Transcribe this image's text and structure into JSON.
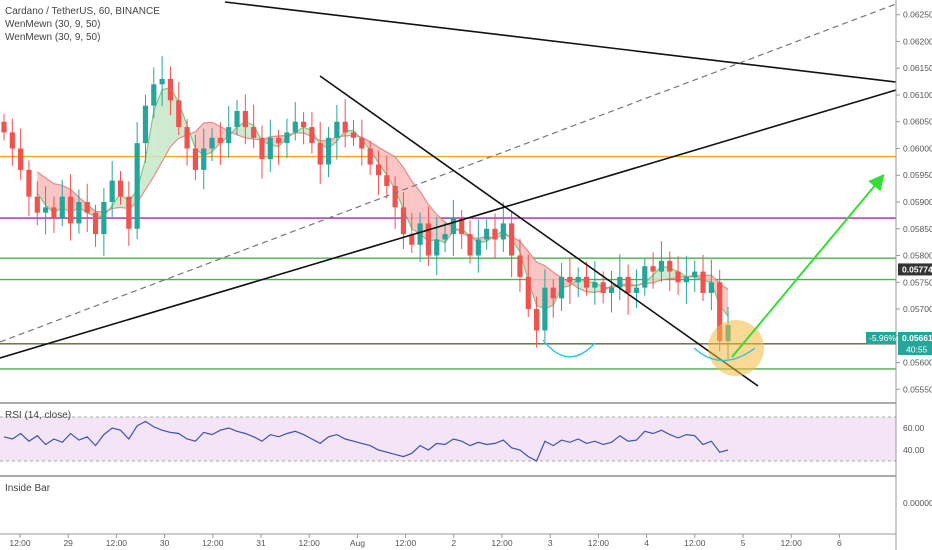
{
  "header": {
    "symbol_line": "Cardano / TetherUS, 60, BINANCE",
    "indicator_1": "WenMewn (30, 9, 50)",
    "indicator_2": "WenMewn (30, 9, 50)"
  },
  "rsi_pane": {
    "label": "RSI (14, close)",
    "ticks": [
      "60.00",
      "40.00"
    ]
  },
  "inside_bar_pane": {
    "label": "Inside Bar",
    "ticks": [
      "0.00000"
    ]
  },
  "price_axis": {
    "ticks": [
      "0.06250",
      "0.06200",
      "0.06150",
      "0.06100",
      "0.06050",
      "0.06000",
      "0.05950",
      "0.05900",
      "0.05850",
      "0.05800",
      "0.05750",
      "0.05700",
      "0.05650",
      "0.05600",
      "0.05550"
    ],
    "last_price_label": "0.05774",
    "current_price_label": "0.05661",
    "change_label": "-5.96%",
    "countdown_label": "40:55"
  },
  "time_axis": {
    "ticks": [
      "12:00",
      "29",
      "12:00",
      "30",
      "12:00",
      "31",
      "12:00",
      "Aug",
      "12:00",
      "2",
      "12:00",
      "3",
      "12:00",
      "4",
      "12:00",
      "5",
      "12:00",
      "6"
    ]
  },
  "colors": {
    "up": "#26a69a",
    "down": "#ef5350",
    "cloud_up": "#c8e6c9",
    "cloud_down": "#f8bbbb",
    "orange_level": "#f5a623",
    "purple_level": "#9c27b0",
    "green_level": "#4caf50",
    "olive_level": "#556b2f",
    "rsi_line": "#3f51b5",
    "rsi_fill": "#f3e5f5",
    "target_arrow": "#33dd33",
    "circle": "#f5b942"
  },
  "chart_data": {
    "type": "candlestick",
    "pair": "Cardano / TetherUS",
    "interval": "60",
    "exchange": "BINANCE",
    "y_range": [
      0.0553,
      0.0627
    ],
    "horizontal_levels": [
      {
        "price": 0.05985,
        "color": "orange"
      },
      {
        "price": 0.0587,
        "color": "purple"
      },
      {
        "price": 0.05795,
        "color": "green"
      },
      {
        "price": 0.05755,
        "color": "green"
      },
      {
        "price": 0.05635,
        "color": "olive"
      },
      {
        "price": 0.05588,
        "color": "green"
      }
    ],
    "price_path": [
      0.0603,
      0.06,
      0.0596,
      0.0591,
      0.0588,
      0.0589,
      0.0587,
      0.0591,
      0.0586,
      0.059,
      0.0588,
      0.0584,
      0.059,
      0.0594,
      0.0591,
      0.0585,
      0.0601,
      0.0608,
      0.0612,
      0.0613,
      0.0609,
      0.0604,
      0.06,
      0.0596,
      0.06,
      0.0602,
      0.0601,
      0.0604,
      0.0607,
      0.0604,
      0.0602,
      0.0598,
      0.0602,
      0.0601,
      0.0603,
      0.0605,
      0.0604,
      0.0601,
      0.0597,
      0.0602,
      0.0605,
      0.0603,
      0.0602,
      0.06,
      0.0597,
      0.0595,
      0.0593,
      0.0589,
      0.0584,
      0.0582,
      0.0586,
      0.058,
      0.0583,
      0.0584,
      0.0587,
      0.0584,
      0.058,
      0.0583,
      0.0585,
      0.0583,
      0.0586,
      0.058,
      0.0576,
      0.057,
      0.0566,
      0.0574,
      0.0572,
      0.0576,
      0.0575,
      0.0576,
      0.0574,
      0.0575,
      0.0573,
      0.0574,
      0.0576,
      0.0573,
      0.0574,
      0.0578,
      0.0577,
      0.0579,
      0.0577,
      0.0575,
      0.0576,
      0.0577,
      0.0573,
      0.0575,
      0.0564,
      0.0567
    ],
    "rsi_path": [
      52,
      50,
      55,
      48,
      53,
      45,
      50,
      47,
      55,
      49,
      52,
      44,
      54,
      60,
      58,
      50,
      62,
      66,
      61,
      58,
      56,
      55,
      50,
      48,
      56,
      54,
      58,
      60,
      57,
      55,
      52,
      48,
      54,
      52,
      55,
      57,
      54,
      50,
      46,
      52,
      54,
      50,
      48,
      46,
      44,
      40,
      38,
      36,
      34,
      37,
      44,
      40,
      46,
      45,
      50,
      48,
      44,
      47,
      45,
      46,
      49,
      42,
      40,
      34,
      30,
      48,
      44,
      49,
      47,
      50,
      46,
      48,
      45,
      47,
      53,
      48,
      49,
      57,
      55,
      58,
      54,
      51,
      54,
      53,
      45,
      48,
      38,
      40
    ]
  }
}
